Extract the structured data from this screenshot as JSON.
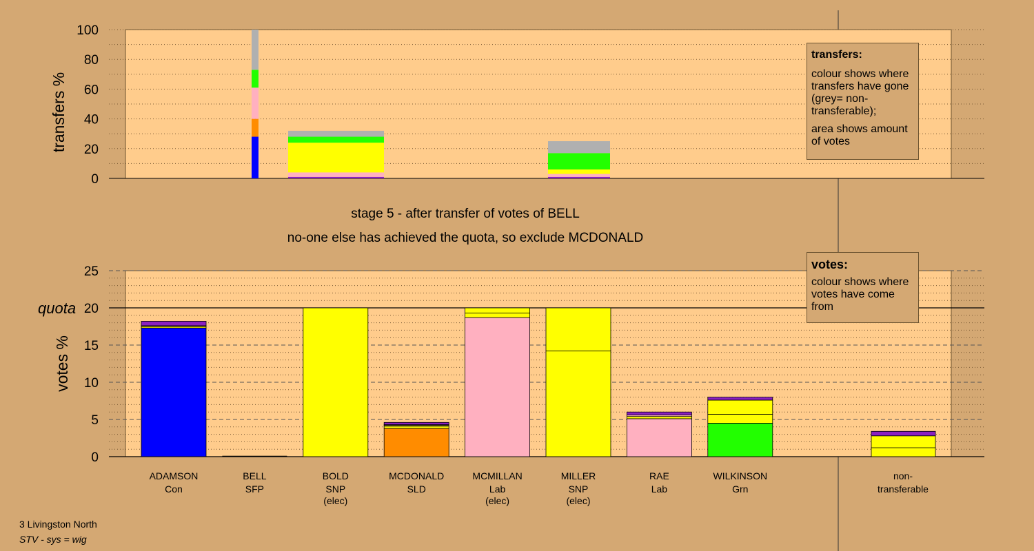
{
  "stage_line1": "stage 5 - after transfer of votes of BELL",
  "stage_line2": "no-one else has achieved the quota, so exclude MCDONALD",
  "transfers_legend": {
    "title": "transfers:",
    "p1": "colour shows where transfers have gone (grey= non-transferable);",
    "p2": "area shows amount of votes"
  },
  "votes_legend": {
    "title": "votes:",
    "p1": "colour shows where votes have come from"
  },
  "footer": {
    "line1": "3 Livingston North",
    "line2": "STV - sys = wig"
  },
  "colors": {
    "Con": "#0000ff",
    "SFP": "#ff9900",
    "SNP": "#ffff00",
    "SLD": "#ff8c00",
    "Lab": "#ffb0c0",
    "Grn": "#22ff00",
    "nontransferable": "#b0b0b0",
    "other": "#8a20c0",
    "plot_bg": "#ffcc8c",
    "page_bg": "#d4a873"
  },
  "chart_data": [
    {
      "type": "bar",
      "ylabel": "transfers %",
      "ylim": [
        0,
        100
      ],
      "yticks": [
        0,
        20,
        40,
        60,
        80,
        100
      ],
      "columns": [
        {
          "name": "BELL",
          "note": "transfer breakdown column",
          "segments": [
            {
              "party": "Con",
              "value": 28
            },
            {
              "party": "SLD",
              "value": 12
            },
            {
              "party": "Lab",
              "value": 21
            },
            {
              "party": "Grn",
              "value": 12
            },
            {
              "party": "nontransferable",
              "value": 27
            }
          ]
        },
        {
          "name": "BOLD",
          "note": "transfers received",
          "segments": [
            {
              "party": "other",
              "value": 1
            },
            {
              "party": "Lab",
              "value": 3
            },
            {
              "party": "SNP",
              "value": 20
            },
            {
              "party": "Grn",
              "value": 4
            },
            {
              "party": "nontransferable",
              "value": 4
            }
          ]
        },
        {
          "name": "MILLER",
          "note": "transfers received",
          "segments": [
            {
              "party": "other",
              "value": 1
            },
            {
              "party": "Lab",
              "value": 2
            },
            {
              "party": "SNP",
              "value": 3
            },
            {
              "party": "Grn",
              "value": 11
            },
            {
              "party": "nontransferable",
              "value": 8
            }
          ]
        }
      ]
    },
    {
      "type": "bar",
      "ylabel": "votes %",
      "ylim": [
        0,
        25
      ],
      "yticks": [
        0,
        5,
        10,
        15,
        20,
        25
      ],
      "quota": 20,
      "quota_label": "quota",
      "categories": [
        {
          "name": "ADAMSON",
          "party": "Con",
          "elec": "",
          "segments": [
            {
              "party": "Con",
              "value": 17.3
            },
            {
              "party": "SNP",
              "value": 0.2
            },
            {
              "party": "Lab",
              "value": 0.1
            },
            {
              "party": "other",
              "value": 0.6
            }
          ]
        },
        {
          "name": "BELL",
          "party": "SFP",
          "elec": "",
          "segments": []
        },
        {
          "name": "BOLD",
          "party": "SNP",
          "elec": "(elec)",
          "segments": [
            {
              "party": "SNP",
              "value": 20.0
            }
          ]
        },
        {
          "name": "MCDONALD",
          "party": "SLD",
          "elec": "",
          "segments": [
            {
              "party": "SLD",
              "value": 3.8
            },
            {
              "party": "SNP",
              "value": 0.3
            },
            {
              "party": "Lab",
              "value": 0.1
            },
            {
              "party": "SNP",
              "value": 0.1
            },
            {
              "party": "other",
              "value": 0.3
            }
          ]
        },
        {
          "name": "MCMILLAN",
          "party": "Lab",
          "elec": "(elec)",
          "segments": [
            {
              "party": "Lab",
              "value": 18.7
            },
            {
              "party": "SNP",
              "value": 0.6
            },
            {
              "party": "SNP",
              "value": 0.7
            }
          ]
        },
        {
          "name": "MILLER",
          "party": "SNP",
          "elec": "(elec)",
          "segments": [
            {
              "party": "SNP",
              "value": 14.2
            },
            {
              "party": "SNP",
              "value": 5.8
            }
          ]
        },
        {
          "name": "RAE",
          "party": "Lab",
          "elec": "",
          "segments": [
            {
              "party": "Lab",
              "value": 5.1
            },
            {
              "party": "SNP",
              "value": 0.3
            },
            {
              "party": "Lab",
              "value": 0.2
            },
            {
              "party": "other",
              "value": 0.4
            }
          ]
        },
        {
          "name": "WILKINSON",
          "party": "Grn",
          "elec": "",
          "segments": [
            {
              "party": "Grn",
              "value": 4.5
            },
            {
              "party": "SNP",
              "value": 1.2
            },
            {
              "party": "SNP",
              "value": 1.9
            },
            {
              "party": "other",
              "value": 0.4
            }
          ]
        }
      ],
      "nontransferable": {
        "label1": "non-",
        "label2": "transferable",
        "segments": [
          {
            "party": "SNP",
            "value": 1.2
          },
          {
            "party": "SNP",
            "value": 1.6
          },
          {
            "party": "other",
            "value": 0.6
          }
        ]
      }
    }
  ]
}
